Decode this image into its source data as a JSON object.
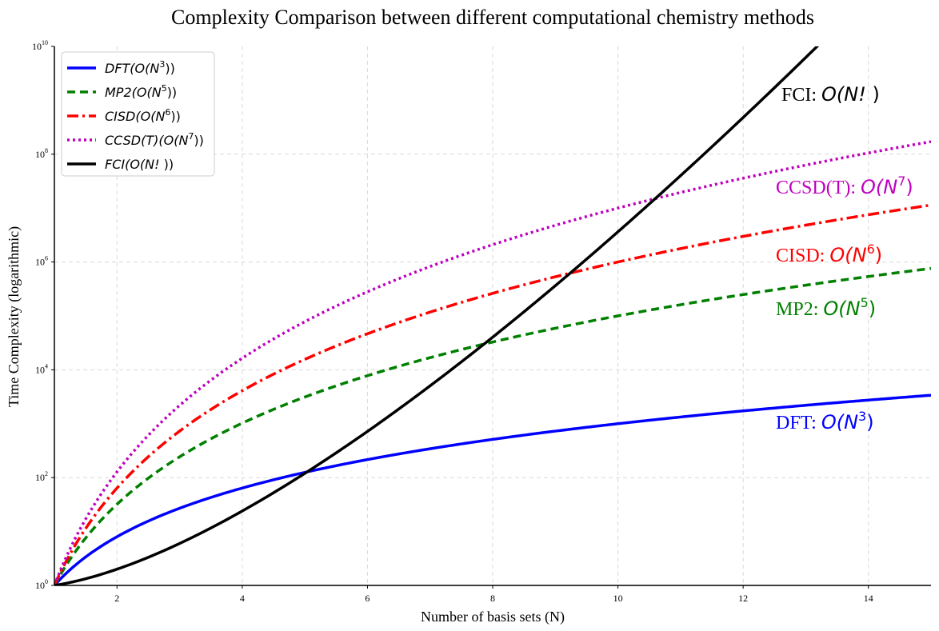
{
  "chart_data": {
    "type": "line",
    "title": "Complexity Comparison between different computational chemistry methods",
    "xlabel": "Number of basis sets (N)",
    "ylabel": "Time Complexity (logarithmic)",
    "xlim": [
      1,
      15
    ],
    "ylim": [
      1,
      10000000000
    ],
    "yscale": "log",
    "grid": true,
    "legend_position": "top-left",
    "x_ticks": [
      {
        "value": 2,
        "label": "2"
      },
      {
        "value": 4,
        "label": "4"
      },
      {
        "value": 6,
        "label": "6"
      },
      {
        "value": 8,
        "label": "8"
      },
      {
        "value": 10,
        "label": "10"
      },
      {
        "value": 12,
        "label": "12"
      },
      {
        "value": 14,
        "label": "14"
      }
    ],
    "y_ticks": [
      {
        "value": 1,
        "base": "10",
        "exp": "0"
      },
      {
        "value": 100,
        "base": "10",
        "exp": "2"
      },
      {
        "value": 10000,
        "base": "10",
        "exp": "4"
      },
      {
        "value": 1000000,
        "base": "10",
        "exp": "6"
      },
      {
        "value": 100000000,
        "base": "10",
        "exp": "8"
      },
      {
        "value": 10000000000,
        "base": "10",
        "exp": "10"
      }
    ],
    "series": [
      {
        "key": "dft",
        "legend": {
          "name": "DFT",
          "big_o": "O(N",
          "power": "3",
          "close": "))"
        },
        "annotation": {
          "prefix": "DFT: ",
          "big_o": "O(N",
          "power": "3",
          "close": ")"
        },
        "formula": "N^3",
        "color": "#0000ff",
        "style": "solid",
        "x": [
          1,
          2,
          3,
          4,
          5,
          6,
          7,
          8,
          9,
          10,
          11,
          12,
          13,
          14,
          15
        ],
        "y": [
          1,
          8,
          27,
          64,
          125,
          216,
          343,
          512,
          729,
          1000,
          1331,
          1728,
          2197,
          2744,
          3375
        ]
      },
      {
        "key": "mp2",
        "legend": {
          "name": "MP2",
          "big_o": "O(N",
          "power": "5",
          "close": "))"
        },
        "annotation": {
          "prefix": "MP2: ",
          "big_o": "O(N",
          "power": "5",
          "close": ")"
        },
        "formula": "N^5",
        "color": "#008000",
        "style": "dashed",
        "x": [
          1,
          2,
          3,
          4,
          5,
          6,
          7,
          8,
          9,
          10,
          11,
          12,
          13,
          14,
          15
        ],
        "y": [
          1,
          32,
          243,
          1024,
          3125,
          7776,
          16807,
          32768,
          59049,
          100000,
          161051,
          248832,
          371293,
          537824,
          759375
        ]
      },
      {
        "key": "cisd",
        "legend": {
          "name": "CISD",
          "big_o": "O(N",
          "power": "6",
          "close": "))"
        },
        "annotation": {
          "prefix": "CISD: ",
          "big_o": "O(N",
          "power": "6",
          "close": ")"
        },
        "formula": "N^6",
        "color": "#ff0000",
        "style": "dashdot",
        "x": [
          1,
          2,
          3,
          4,
          5,
          6,
          7,
          8,
          9,
          10,
          11,
          12,
          13,
          14,
          15
        ],
        "y": [
          1,
          64,
          729,
          4096,
          15625,
          46656,
          117649,
          262144,
          531441,
          1000000,
          1771561,
          2985984,
          4826809,
          7529536,
          11390625
        ]
      },
      {
        "key": "ccsdt",
        "legend": {
          "name": "CCSD(T)",
          "big_o": "O(N",
          "power": "7",
          "close": "))"
        },
        "annotation": {
          "prefix": "CCSD(T): ",
          "big_o": "O(N",
          "power": "7",
          "close": ")"
        },
        "formula": "N^7",
        "color": "#bf00bf",
        "style": "dotted",
        "x": [
          1,
          2,
          3,
          4,
          5,
          6,
          7,
          8,
          9,
          10,
          11,
          12,
          13,
          14,
          15
        ],
        "y": [
          1,
          128,
          2187,
          16384,
          78125,
          279936,
          823543,
          2097152,
          4782969,
          10000000,
          19487171,
          35831808,
          62748517,
          105413504,
          170859375
        ]
      },
      {
        "key": "fci",
        "legend": {
          "name": "FCI",
          "big_o": "O(N! ",
          "power": "",
          "close": "))"
        },
        "annotation": {
          "prefix": "FCI: ",
          "big_o": "O(N! ",
          "power": "",
          "close": ")"
        },
        "formula": "Gamma(N+1)",
        "color": "#000000",
        "style": "solid",
        "x": [
          1,
          2,
          3,
          4,
          5,
          6,
          7,
          8,
          9,
          10,
          11,
          12,
          13,
          14
        ],
        "y": [
          1,
          2,
          6,
          24,
          120,
          720,
          5040,
          40320,
          362880,
          3628800,
          39916800,
          479001600,
          6227020800,
          87178291200
        ]
      }
    ]
  }
}
